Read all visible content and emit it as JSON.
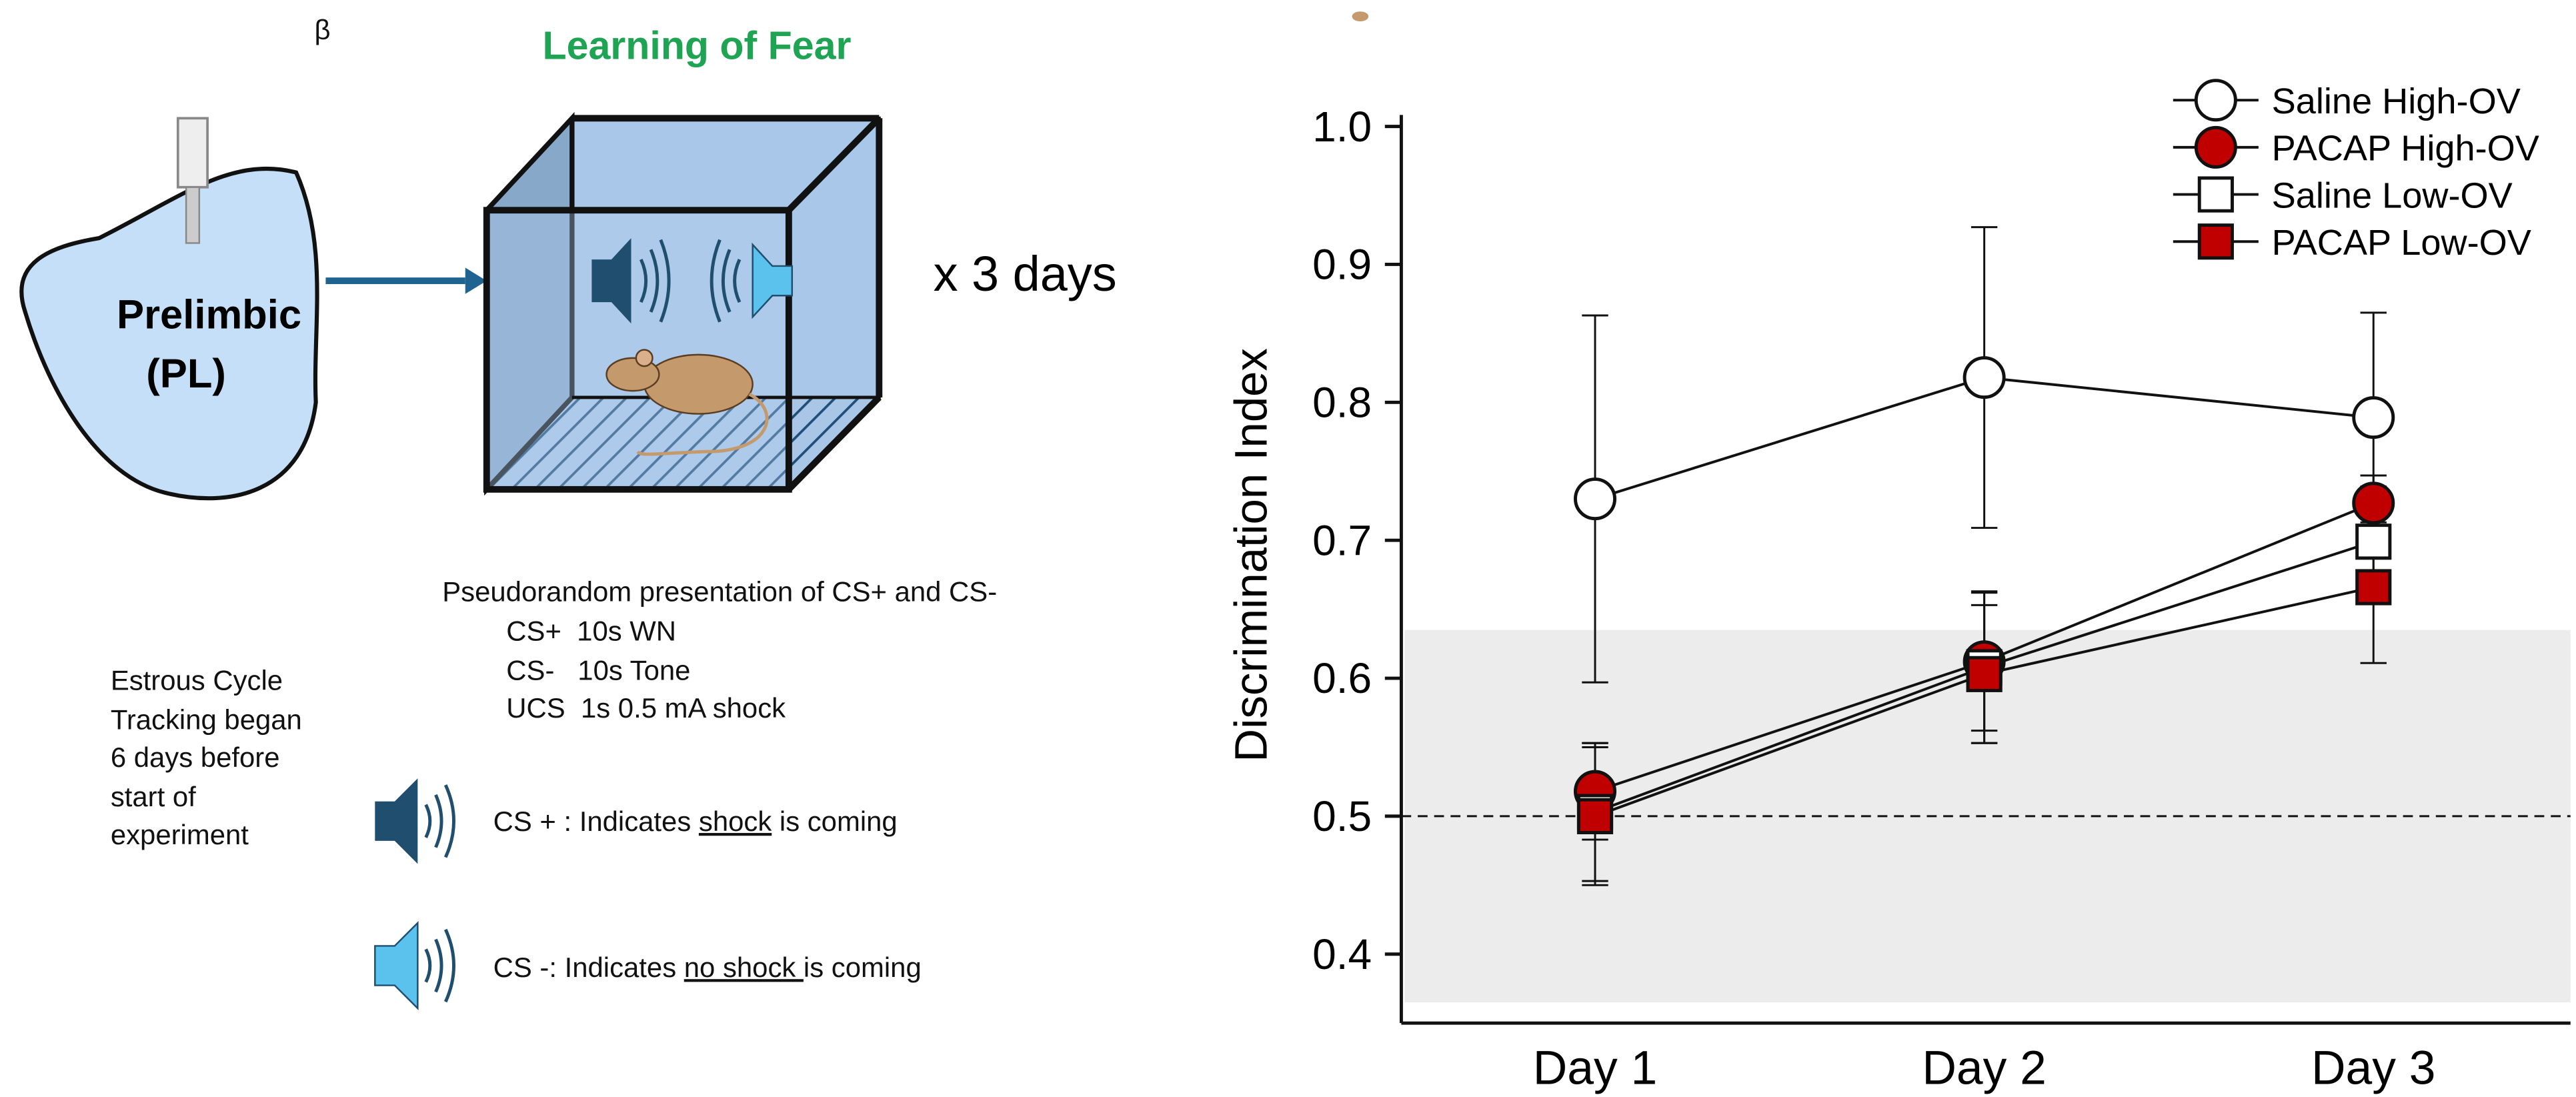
{
  "diagram": {
    "beta": "β",
    "title": "Learning of Fear",
    "region": [
      "Prelimbic",
      "(PL)"
    ],
    "repeat": "x 3 days",
    "protocol": [
      "Pseudorandom presentation of CS+ and CS-",
      "CS+  10s WN",
      "CS-   10s Tone",
      "UCS  1s 0.5 mA shock"
    ],
    "estrous": [
      "Estrous Cycle",
      "Tracking began",
      "6 days before",
      "start of",
      "experiment"
    ],
    "cs_plus": [
      "CS + : Indicates ",
      "shock",
      " is coming"
    ],
    "cs_minus": [
      "CS -: Indicates ",
      "no shock ",
      "is coming"
    ]
  },
  "chart_data": {
    "type": "line",
    "y_label": "Discrimination Index",
    "categories": [
      "Day 1",
      "Day 2",
      "Day 3"
    ],
    "ylim": [
      0.35,
      1.0
    ],
    "yticks": [
      0.4,
      0.5,
      0.6,
      0.7,
      0.8,
      0.9,
      {
        "value": 1,
        "label": "1.0"
      }
    ],
    "band": [
      0.365,
      0.635
    ],
    "band_color": "#ececec",
    "reference_line": 0.5,
    "series": [
      {
        "name": "Saline High-OV",
        "color": "#ffffff",
        "marker": "circle",
        "values": [
          0.73,
          0.818,
          0.789
        ],
        "errors": [
          0.133,
          0.109,
          0.076
        ]
      },
      {
        "name": "PACAP High-OV",
        "color": "#c00000",
        "marker": "circle",
        "values": [
          0.518,
          0.612,
          0.727
        ],
        "errors": [
          0.035,
          0.05,
          0.02
        ]
      },
      {
        "name": "Saline Low-OV",
        "color": "#ffffff",
        "marker": "square",
        "values": [
          0.503,
          0.608,
          0.699
        ],
        "errors": [
          0.05,
          0.055,
          0.04
        ]
      },
      {
        "name": "PACAP Low-OV",
        "color": "#c00000",
        "marker": "square",
        "values": [
          0.5,
          0.603,
          0.666
        ],
        "errors": [
          0.05,
          0.05,
          0.055
        ]
      }
    ]
  }
}
